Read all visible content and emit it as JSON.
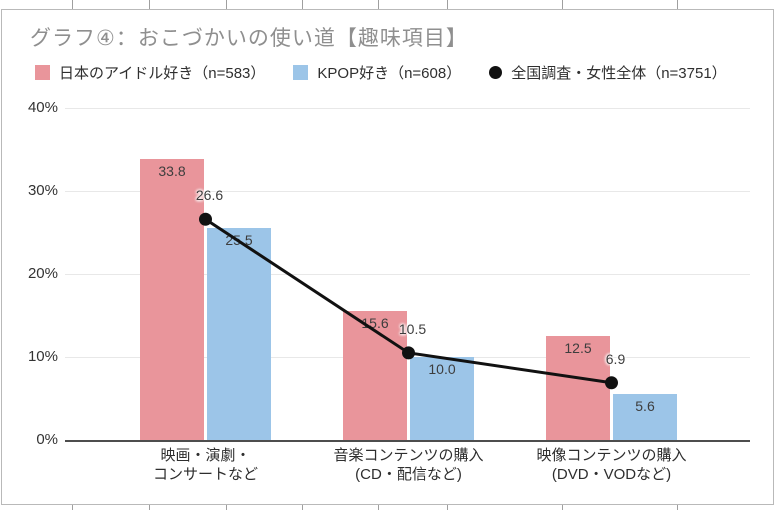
{
  "header": {
    "title": "グラフ④：おこづかいの使い道【趣味項目】"
  },
  "legend": [
    {
      "label": "日本のアイドル好き（n=583）",
      "marker": "square",
      "color": "#E9959B"
    },
    {
      "label": "KPOP好き（n=608）",
      "marker": "square",
      "color": "#9CC5E8"
    },
    {
      "label": "全国調査・女性全体（n=3751）",
      "marker": "circle",
      "color": "#111111"
    }
  ],
  "chart_data": {
    "type": "bar",
    "title": "グラフ④：おこづかいの使い道【趣味項目】",
    "categories": [
      [
        "映画・演劇・",
        "コンサートなど"
      ],
      [
        "音楽コンテンツの購入",
        "(CD・配信など)"
      ],
      [
        "映像コンテンツの購入",
        "(DVD・VODなど)"
      ]
    ],
    "series": [
      {
        "name": "日本のアイドル好き（n=583）",
        "kind": "bar",
        "color": "#E9959B",
        "values": [
          33.8,
          15.6,
          12.5
        ],
        "labels": [
          "33.8",
          "15.6",
          "12.5"
        ]
      },
      {
        "name": "KPOP好き（n=608）",
        "kind": "bar",
        "color": "#9CC5E8",
        "values": [
          25.5,
          10.0,
          5.6
        ],
        "labels": [
          "25.5",
          "10.0",
          "5.6"
        ]
      },
      {
        "name": "全国調査・女性全体（n=3751）",
        "kind": "line",
        "color": "#111111",
        "values": [
          26.6,
          10.5,
          6.9
        ],
        "labels": [
          "26.6",
          "10.5",
          "6.9"
        ]
      }
    ],
    "y_axis": {
      "min": 0,
      "max": 40,
      "tick_step": 10,
      "tick_labels": [
        "0%",
        "10%",
        "20%",
        "30%",
        "40%"
      ],
      "grid": true
    },
    "xlabel": "",
    "ylabel": "",
    "legend_position": "top"
  },
  "colors": {
    "bar_pink": "#E9959B",
    "bar_blue": "#9CC5E8",
    "line_black": "#111111",
    "title_gray": "#8F8F8F",
    "grid_gray": "#E8E8E8",
    "axis_dark": "#4D4D4D"
  }
}
